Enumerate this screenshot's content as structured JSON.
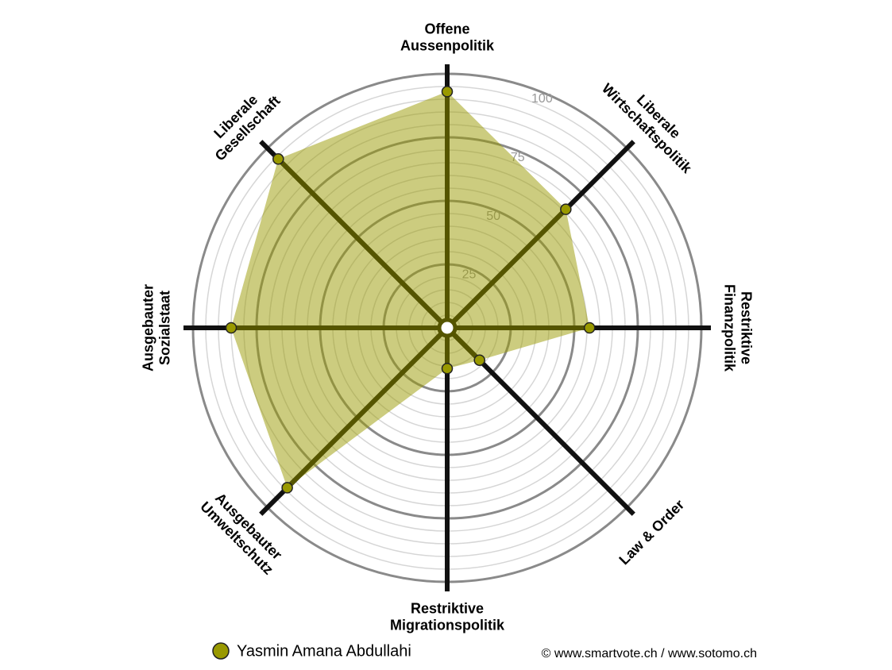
{
  "chart_data": {
    "type": "radar",
    "axes": [
      [
        "Offene",
        "Aussenpolitik"
      ],
      [
        "Liberale",
        "Wirtschaftspolitik"
      ],
      [
        "Restriktive",
        "Finanzpolitik"
      ],
      [
        "Law & Order"
      ],
      [
        "Restriktive",
        "Migrationspolitik"
      ],
      [
        "Ausgebauter",
        "Umweltschutz"
      ],
      [
        "Ausgebauter",
        "Sozialstaat"
      ],
      [
        "Liberale",
        "Gesellschaft"
      ]
    ],
    "series": [
      {
        "name": "Yasmin Amana Abdullahi",
        "color": "#999900",
        "values": [
          93,
          66,
          56,
          18,
          16,
          89,
          85,
          94
        ]
      }
    ],
    "ylim": [
      0,
      100
    ],
    "yticks": [
      25,
      50,
      75,
      100
    ],
    "source": "© www.smartvote.ch / www.sotomo.ch"
  }
}
